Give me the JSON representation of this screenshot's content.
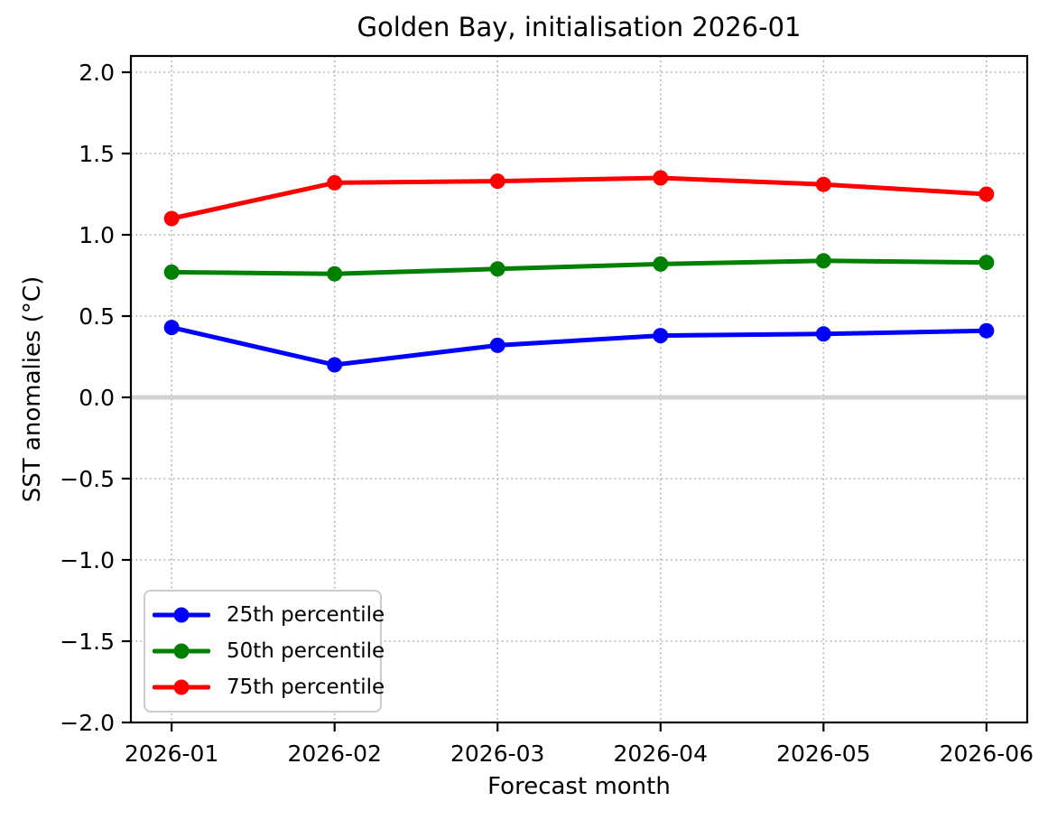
{
  "chart_data": {
    "type": "line",
    "title": "Golden Bay, initialisation 2026-01",
    "xlabel": "Forecast month",
    "ylabel": "SST anomalies (°C)",
    "categories": [
      "2026-01",
      "2026-02",
      "2026-03",
      "2026-04",
      "2026-05",
      "2026-06"
    ],
    "series": [
      {
        "name": "25th percentile",
        "color": "#0000ff",
        "values": [
          0.43,
          0.2,
          0.32,
          0.38,
          0.39,
          0.41
        ]
      },
      {
        "name": "50th percentile",
        "color": "#008000",
        "values": [
          0.77,
          0.76,
          0.79,
          0.82,
          0.84,
          0.83
        ]
      },
      {
        "name": "75th percentile",
        "color": "#ff0000",
        "values": [
          1.1,
          1.32,
          1.33,
          1.35,
          1.31,
          1.25
        ]
      }
    ],
    "ylim": [
      -2.0,
      2.1
    ],
    "yticks": [
      2.0,
      1.5,
      1.0,
      0.5,
      0.0,
      -0.5,
      -1.0,
      -1.5,
      -2.0
    ],
    "grid": true,
    "grid_style": "dotted",
    "grid_color": "#b0b0b0",
    "zero_line_color": "#d3d3d3",
    "axis_color": "#000000",
    "legend_position": "lower left"
  }
}
